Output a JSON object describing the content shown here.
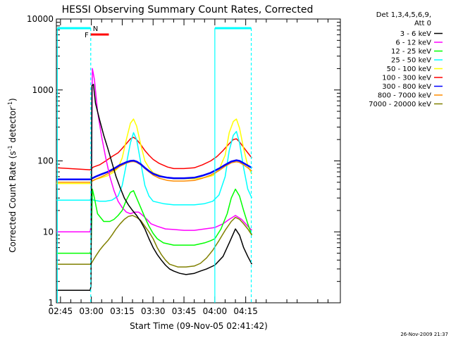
{
  "chart_data": {
    "type": "line",
    "title": "HESSI Observing Summary Count Rates, Corrected",
    "xlabel": "Start Time (09-Nov-05 02:41:42)",
    "ylabel_main": "Corrected Count Rate (s",
    "ylabel_sup1": "-1",
    "ylabel_mid": " detector",
    "ylabel_sup2": "-1",
    "ylabel_end": ")",
    "y_scale": "log",
    "ylim": [
      1,
      10000
    ],
    "xlim_min": [
      43,
      181
    ],
    "y_ticks": [
      {
        "v": 1,
        "label": "1"
      },
      {
        "v": 10,
        "label": "10"
      },
      {
        "v": 100,
        "label": "100"
      },
      {
        "v": 1000,
        "label": "1000"
      },
      {
        "v": 10000,
        "label": "10000"
      }
    ],
    "x_ticks": [
      {
        "min": 45,
        "label": "02:45"
      },
      {
        "min": 60,
        "label": "03:00"
      },
      {
        "min": 75,
        "label": "03:15"
      },
      {
        "min": 90,
        "label": "03:30"
      },
      {
        "min": 105,
        "label": "03:45"
      },
      {
        "min": 120,
        "label": "04:00"
      },
      {
        "min": 135,
        "label": "04:15"
      }
    ],
    "legend_header": [
      "Det 1,3,4,5,6,9,",
      "Att 0"
    ],
    "legend_position": "right",
    "series": [
      {
        "name": "3 - 6 keV",
        "color": "#000000",
        "points": [
          [
            43,
            1.5
          ],
          [
            59.4,
            1.5
          ],
          [
            59.8,
            1.7
          ],
          [
            60.3,
            1150
          ],
          [
            61,
            1200
          ],
          [
            62,
            650
          ],
          [
            64,
            380
          ],
          [
            66,
            230
          ],
          [
            68,
            150
          ],
          [
            70,
            95
          ],
          [
            72,
            60
          ],
          [
            74,
            42
          ],
          [
            76,
            30
          ],
          [
            78,
            24
          ],
          [
            80,
            20
          ],
          [
            82,
            17
          ],
          [
            84,
            14
          ],
          [
            86,
            11
          ],
          [
            88,
            8
          ],
          [
            90,
            6
          ],
          [
            92,
            4.8
          ],
          [
            94,
            4
          ],
          [
            96,
            3.4
          ],
          [
            98,
            3
          ],
          [
            100,
            2.8
          ],
          [
            103,
            2.6
          ],
          [
            106,
            2.5
          ],
          [
            110,
            2.6
          ],
          [
            113,
            2.8
          ],
          [
            116,
            3
          ],
          [
            120,
            3.4
          ],
          [
            124,
            4.5
          ],
          [
            127,
            7
          ],
          [
            130,
            11
          ],
          [
            132,
            9
          ],
          [
            134,
            6
          ],
          [
            136,
            4.5
          ],
          [
            138,
            3.5
          ]
        ]
      },
      {
        "name": "6 - 12 keV",
        "color": "#ff00ff",
        "points": [
          [
            43,
            10
          ],
          [
            59.4,
            10
          ],
          [
            59.8,
            12
          ],
          [
            60.5,
            2000
          ],
          [
            61.5,
            1400
          ],
          [
            63,
            500
          ],
          [
            65,
            220
          ],
          [
            67,
            110
          ],
          [
            69,
            60
          ],
          [
            71,
            38
          ],
          [
            73,
            27
          ],
          [
            75,
            22
          ],
          [
            77,
            19
          ],
          [
            79,
            18
          ],
          [
            81,
            19
          ],
          [
            83,
            19
          ],
          [
            85,
            17
          ],
          [
            87,
            15
          ],
          [
            89,
            13
          ],
          [
            92,
            12
          ],
          [
            96,
            11
          ],
          [
            100,
            10.8
          ],
          [
            105,
            10.5
          ],
          [
            110,
            10.5
          ],
          [
            115,
            11
          ],
          [
            120,
            11.5
          ],
          [
            124,
            13
          ],
          [
            127,
            15
          ],
          [
            130,
            17
          ],
          [
            133,
            15
          ],
          [
            136,
            12
          ],
          [
            138,
            10.5
          ]
        ]
      },
      {
        "name": "12 - 25 keV",
        "color": "#00ff00",
        "points": [
          [
            43,
            5
          ],
          [
            59.4,
            5
          ],
          [
            59.8,
            5.5
          ],
          [
            60.5,
            40
          ],
          [
            61.5,
            30
          ],
          [
            63,
            18
          ],
          [
            66,
            14
          ],
          [
            69,
            14
          ],
          [
            71,
            15
          ],
          [
            73,
            17
          ],
          [
            75,
            20
          ],
          [
            77,
            28
          ],
          [
            79,
            36
          ],
          [
            80.5,
            38
          ],
          [
            82,
            30
          ],
          [
            84,
            22
          ],
          [
            86,
            16
          ],
          [
            88,
            12
          ],
          [
            90,
            9.5
          ],
          [
            92,
            8
          ],
          [
            95,
            7
          ],
          [
            100,
            6.5
          ],
          [
            105,
            6.5
          ],
          [
            110,
            6.5
          ],
          [
            115,
            7
          ],
          [
            118,
            7.5
          ],
          [
            120,
            8
          ],
          [
            123,
            11
          ],
          [
            126,
            18
          ],
          [
            128,
            30
          ],
          [
            130,
            40
          ],
          [
            132,
            32
          ],
          [
            134,
            20
          ],
          [
            136,
            13
          ],
          [
            138,
            9
          ]
        ]
      },
      {
        "name": "25 - 50 keV",
        "color": "#00ffff",
        "points": [
          [
            43,
            28
          ],
          [
            59.4,
            28
          ],
          [
            60,
            30
          ],
          [
            61,
            28
          ],
          [
            64,
            27
          ],
          [
            67,
            27
          ],
          [
            70,
            28
          ],
          [
            73,
            32
          ],
          [
            75,
            45
          ],
          [
            77,
            90
          ],
          [
            79,
            180
          ],
          [
            80.5,
            250
          ],
          [
            82,
            200
          ],
          [
            84,
            95
          ],
          [
            86,
            45
          ],
          [
            88,
            32
          ],
          [
            90,
            27
          ],
          [
            95,
            25
          ],
          [
            100,
            24
          ],
          [
            105,
            24
          ],
          [
            110,
            24
          ],
          [
            115,
            25
          ],
          [
            119,
            27
          ],
          [
            122,
            33
          ],
          [
            125,
            60
          ],
          [
            127,
            140
          ],
          [
            129,
            230
          ],
          [
            130.5,
            260
          ],
          [
            132,
            180
          ],
          [
            134,
            80
          ],
          [
            136,
            40
          ],
          [
            138,
            30
          ]
        ]
      },
      {
        "name": "50 - 100 keV",
        "color": "#ffff00",
        "points": [
          [
            43,
            48
          ],
          [
            59.4,
            48
          ],
          [
            60,
            52
          ],
          [
            62,
            55
          ],
          [
            65,
            58
          ],
          [
            68,
            62
          ],
          [
            71,
            70
          ],
          [
            73,
            80
          ],
          [
            75,
            110
          ],
          [
            77,
            200
          ],
          [
            79,
            340
          ],
          [
            80.5,
            390
          ],
          [
            82,
            310
          ],
          [
            84,
            170
          ],
          [
            86,
            100
          ],
          [
            88,
            80
          ],
          [
            90,
            68
          ],
          [
            95,
            60
          ],
          [
            100,
            56
          ],
          [
            105,
            56
          ],
          [
            110,
            56
          ],
          [
            115,
            58
          ],
          [
            119,
            62
          ],
          [
            122,
            75
          ],
          [
            125,
            120
          ],
          [
            127,
            250
          ],
          [
            129,
            360
          ],
          [
            130.5,
            390
          ],
          [
            132,
            290
          ],
          [
            134,
            150
          ],
          [
            136,
            85
          ],
          [
            138,
            65
          ]
        ]
      },
      {
        "name": "100 - 300 keV",
        "color": "#ff0000",
        "points": [
          [
            43,
            80
          ],
          [
            59.4,
            75
          ],
          [
            61,
            82
          ],
          [
            64,
            88
          ],
          [
            67,
            100
          ],
          [
            70,
            115
          ],
          [
            73,
            130
          ],
          [
            75,
            150
          ],
          [
            77,
            175
          ],
          [
            79,
            205
          ],
          [
            80.5,
            215
          ],
          [
            82,
            200
          ],
          [
            84,
            170
          ],
          [
            86,
            140
          ],
          [
            88,
            120
          ],
          [
            90,
            105
          ],
          [
            93,
            92
          ],
          [
            97,
            82
          ],
          [
            100,
            78
          ],
          [
            105,
            78
          ],
          [
            110,
            80
          ],
          [
            114,
            88
          ],
          [
            118,
            100
          ],
          [
            121,
            115
          ],
          [
            124,
            140
          ],
          [
            127,
            175
          ],
          [
            129,
            200
          ],
          [
            130.5,
            205
          ],
          [
            132,
            185
          ],
          [
            134,
            155
          ],
          [
            136,
            130
          ],
          [
            138,
            110
          ]
        ]
      },
      {
        "name": "300 - 800 keV",
        "color": "#0000ff",
        "points": [
          [
            43,
            55
          ],
          [
            59.4,
            55
          ],
          [
            62,
            60
          ],
          [
            65,
            65
          ],
          [
            68,
            70
          ],
          [
            71,
            78
          ],
          [
            74,
            88
          ],
          [
            77,
            96
          ],
          [
            79,
            100
          ],
          [
            80.5,
            101
          ],
          [
            82,
            98
          ],
          [
            84,
            90
          ],
          [
            86,
            80
          ],
          [
            88,
            72
          ],
          [
            90,
            66
          ],
          [
            93,
            61
          ],
          [
            97,
            58
          ],
          [
            100,
            57
          ],
          [
            105,
            57
          ],
          [
            110,
            58
          ],
          [
            114,
            62
          ],
          [
            118,
            68
          ],
          [
            122,
            78
          ],
          [
            125,
            88
          ],
          [
            128,
            98
          ],
          [
            130.5,
            102
          ],
          [
            132,
            100
          ],
          [
            134,
            93
          ],
          [
            136,
            86
          ],
          [
            138,
            80
          ]
        ]
      },
      {
        "name": "800 - 7000 keV",
        "color": "#ff8c00",
        "points": [
          [
            43,
            50
          ],
          [
            59.4,
            50
          ],
          [
            62,
            55
          ],
          [
            65,
            60
          ],
          [
            68,
            66
          ],
          [
            71,
            74
          ],
          [
            74,
            84
          ],
          [
            77,
            93
          ],
          [
            79,
            97
          ],
          [
            80.5,
            98
          ],
          [
            82,
            95
          ],
          [
            84,
            88
          ],
          [
            86,
            78
          ],
          [
            88,
            70
          ],
          [
            90,
            63
          ],
          [
            93,
            57
          ],
          [
            97,
            53
          ],
          [
            100,
            52
          ],
          [
            105,
            52
          ],
          [
            110,
            53
          ],
          [
            114,
            57
          ],
          [
            118,
            63
          ],
          [
            122,
            73
          ],
          [
            125,
            84
          ],
          [
            128,
            94
          ],
          [
            130.5,
            97
          ],
          [
            132,
            95
          ],
          [
            134,
            88
          ],
          [
            136,
            80
          ],
          [
            138,
            72
          ]
        ]
      },
      {
        "name": "7000 - 20000 keV",
        "color": "#808000",
        "points": [
          [
            43,
            3.5
          ],
          [
            59.4,
            3.5
          ],
          [
            60,
            3.6
          ],
          [
            62,
            4.5
          ],
          [
            64,
            5.5
          ],
          [
            66,
            6.5
          ],
          [
            68,
            7.5
          ],
          [
            70,
            9
          ],
          [
            72,
            11
          ],
          [
            74,
            13
          ],
          [
            76,
            15
          ],
          [
            78,
            16.5
          ],
          [
            80,
            17
          ],
          [
            82,
            16
          ],
          [
            84,
            14.5
          ],
          [
            86,
            12
          ],
          [
            88,
            10
          ],
          [
            90,
            8
          ],
          [
            92,
            6
          ],
          [
            94,
            4.8
          ],
          [
            96,
            4
          ],
          [
            98,
            3.5
          ],
          [
            102,
            3.2
          ],
          [
            106,
            3.2
          ],
          [
            110,
            3.3
          ],
          [
            113,
            3.6
          ],
          [
            116,
            4.3
          ],
          [
            119,
            5.5
          ],
          [
            122,
            7.5
          ],
          [
            125,
            10.5
          ],
          [
            128,
            14
          ],
          [
            130,
            16
          ],
          [
            132,
            15
          ],
          [
            134,
            13
          ],
          [
            136,
            11
          ],
          [
            138,
            9
          ]
        ]
      }
    ],
    "overlays": {
      "color": "#00ffff",
      "segment_markers": [
        {
          "x": 43.5
        },
        {
          "x": 59.7
        },
        {
          "x": 120
        },
        {
          "x": 137.7
        }
      ],
      "night_bars": [
        {
          "x0": 43.5,
          "x1": 59.7
        },
        {
          "x0": 120,
          "x1": 137.7
        }
      ],
      "night_label": "N",
      "flare_label": "F",
      "flare_color": "#ff0000",
      "flare_bar": {
        "x0": 59.7,
        "x1": 68.5
      }
    }
  },
  "footer": {
    "timestamp": "26-Nov-2009 21:37"
  }
}
